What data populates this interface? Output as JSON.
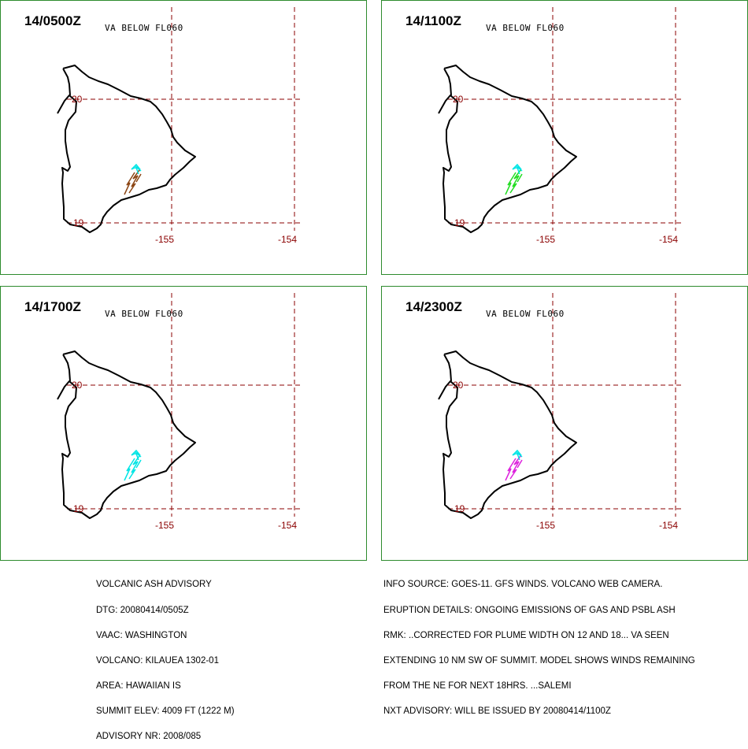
{
  "panels": [
    {
      "time": "14/0500Z",
      "subtitle": "VA BELOW FL060",
      "plume_colors": [
        "#00e5e5",
        "#8b4513"
      ]
    },
    {
      "time": "14/1100Z",
      "subtitle": "VA BELOW FL060",
      "plume_colors": [
        "#00e5e5",
        "#22dd22"
      ]
    },
    {
      "time": "14/1700Z",
      "subtitle": "VA BELOW FL060",
      "plume_colors": [
        "#00e5e5",
        "#00e5e5"
      ]
    },
    {
      "time": "14/2300Z",
      "subtitle": "VA BELOW FL060",
      "plume_colors": [
        "#00e5e5",
        "#dd22dd"
      ]
    }
  ],
  "grid": {
    "lat_labels": [
      "20",
      "19"
    ],
    "lon_labels": [
      "-155",
      "-154"
    ],
    "grid_color": "#8b0000",
    "border_color": "#2e8b2e"
  },
  "advisory_left": [
    "VOLCANIC ASH ADVISORY",
    "DTG: 20080414/0505Z",
    "VAAC: WASHINGTON",
    "VOLCANO: KILAUEA 1302-01",
    "AREA: HAWAIIAN IS",
    "SUMMIT ELEV: 4009 FT (1222 M)",
    "ADVISORY NR: 2008/085"
  ],
  "advisory_right": [
    "INFO SOURCE: GOES-11. GFS WINDS. VOLCANO WEB CAMERA.",
    "ERUPTION DETAILS: ONGOING EMISSIONS OF GAS AND PSBL ASH",
    "RMK: ..CORRECTED FOR PLUME WIDTH ON 12 AND 18... VA SEEN",
    "EXTENDING 10 NM SW OF SUMMIT. MODEL SHOWS WINDS REMAINING",
    "FROM THE NE FOR NEXT 18HRS. ...SALEMI",
    "NXT ADVISORY: WILL BE ISSUED BY 20080414/1100Z"
  ]
}
